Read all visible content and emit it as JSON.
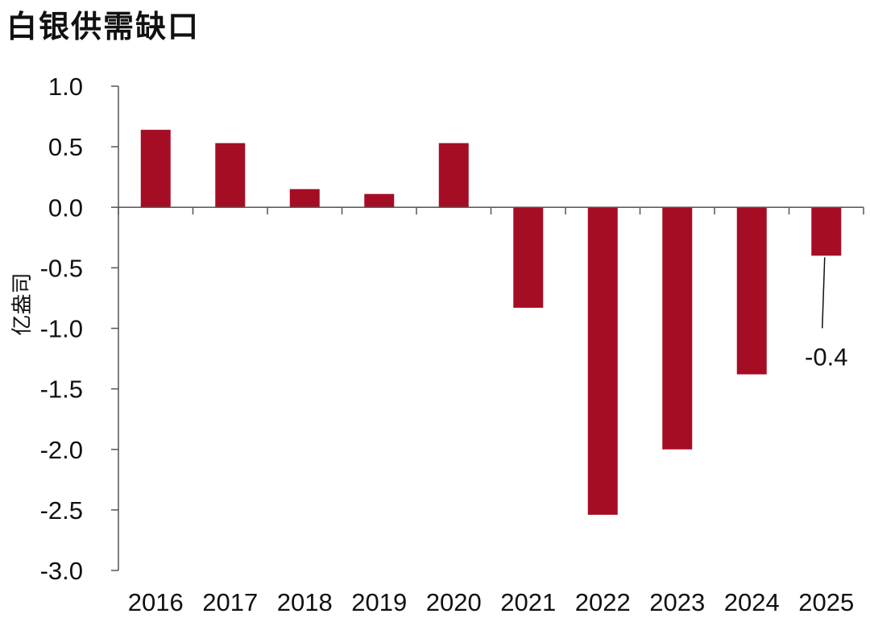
{
  "chart_data": {
    "type": "bar",
    "title": "白银供需缺口",
    "ylabel": "亿盎司",
    "xlabel": "",
    "categories": [
      "2016",
      "2017",
      "2018",
      "2019",
      "2020",
      "2021",
      "2022",
      "2023",
      "2024",
      "2025"
    ],
    "values": [
      0.64,
      0.53,
      0.15,
      0.11,
      0.53,
      -0.83,
      -2.54,
      -2.0,
      -1.38,
      -0.4
    ],
    "ylim": [
      -3.0,
      1.0
    ],
    "yticks": [
      "1.0",
      "0.5",
      "0.0",
      "-0.5",
      "-1.0",
      "-1.5",
      "-2.0",
      "-2.5",
      "-3.0"
    ],
    "bar_color": "#A50D25",
    "grid": false,
    "legend": "none",
    "annotations": [
      {
        "category": "2025",
        "text": "-0.4"
      }
    ]
  }
}
